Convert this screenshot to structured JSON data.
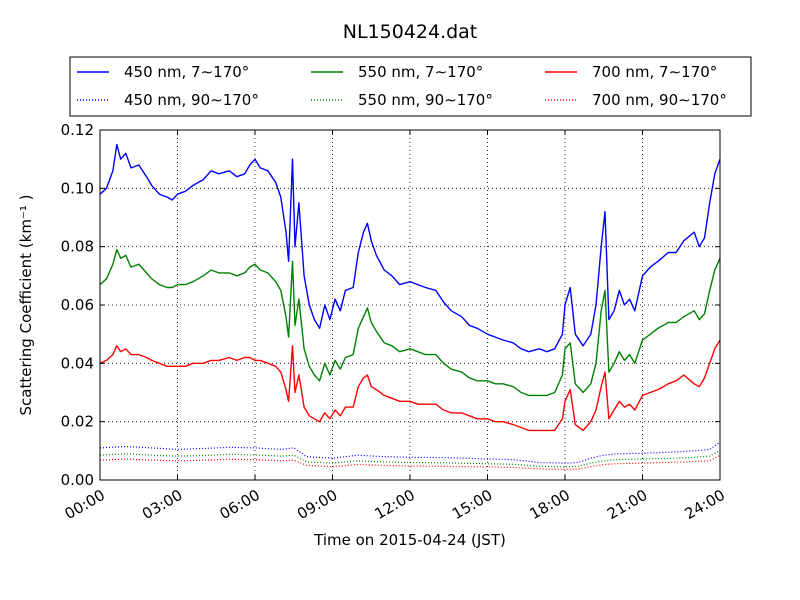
{
  "chart_data": {
    "type": "line",
    "title": "NL150424.dat",
    "xlabel": "Time on 2015-04-24 (JST)",
    "ylabel": "Scattering Coefficient (km⁻¹ )",
    "xlim": [
      0,
      24
    ],
    "ylim": [
      0,
      0.12
    ],
    "xticks": [
      0,
      3,
      6,
      9,
      12,
      15,
      18,
      21,
      24
    ],
    "xtick_labels": [
      "00:00",
      "03:00",
      "06:00",
      "09:00",
      "12:00",
      "15:00",
      "18:00",
      "21:00",
      "24:00"
    ],
    "yticks": [
      0,
      0.02,
      0.04,
      0.06,
      0.08,
      0.1,
      0.12
    ],
    "ytick_labels": [
      "0.00",
      "0.02",
      "0.04",
      "0.06",
      "0.08",
      "0.10",
      "0.12"
    ],
    "grid": true,
    "legend_position": "top, above plot, 3 columns",
    "x_units": "hours",
    "series": [
      {
        "name": "450 nm, 7∼170°",
        "color": "#0000ff",
        "style": "solid",
        "x": [
          0,
          0.25,
          0.5,
          0.65,
          0.8,
          1.0,
          1.2,
          1.5,
          1.8,
          2.0,
          2.3,
          2.6,
          2.8,
          3.0,
          3.3,
          3.6,
          4.0,
          4.3,
          4.6,
          5.0,
          5.3,
          5.6,
          5.8,
          6.0,
          6.2,
          6.5,
          6.8,
          7.0,
          7.2,
          7.3,
          7.45,
          7.55,
          7.7,
          7.9,
          8.1,
          8.3,
          8.5,
          8.7,
          8.9,
          9.1,
          9.3,
          9.5,
          9.8,
          10.0,
          10.2,
          10.35,
          10.5,
          10.7,
          11.0,
          11.3,
          11.6,
          12.0,
          12.3,
          12.6,
          13.0,
          13.3,
          13.6,
          14.0,
          14.3,
          14.6,
          15.0,
          15.3,
          15.6,
          16.0,
          16.3,
          16.6,
          17.0,
          17.3,
          17.6,
          17.9,
          18.0,
          18.2,
          18.4,
          18.7,
          19.0,
          19.2,
          19.4,
          19.55,
          19.7,
          19.9,
          20.1,
          20.3,
          20.5,
          20.7,
          21.0,
          21.3,
          21.6,
          22.0,
          22.3,
          22.6,
          23.0,
          23.2,
          23.4,
          23.6,
          23.8,
          24.0
        ],
        "y": [
          0.098,
          0.1,
          0.106,
          0.115,
          0.11,
          0.112,
          0.107,
          0.108,
          0.104,
          0.101,
          0.098,
          0.097,
          0.096,
          0.098,
          0.099,
          0.101,
          0.103,
          0.106,
          0.105,
          0.106,
          0.104,
          0.105,
          0.108,
          0.11,
          0.107,
          0.106,
          0.102,
          0.097,
          0.085,
          0.075,
          0.11,
          0.08,
          0.095,
          0.07,
          0.06,
          0.055,
          0.052,
          0.06,
          0.055,
          0.062,
          0.058,
          0.065,
          0.066,
          0.078,
          0.085,
          0.088,
          0.082,
          0.077,
          0.072,
          0.07,
          0.067,
          0.068,
          0.067,
          0.066,
          0.065,
          0.061,
          0.058,
          0.056,
          0.053,
          0.052,
          0.05,
          0.049,
          0.048,
          0.047,
          0.045,
          0.044,
          0.045,
          0.044,
          0.045,
          0.05,
          0.06,
          0.066,
          0.05,
          0.046,
          0.05,
          0.06,
          0.08,
          0.092,
          0.055,
          0.058,
          0.065,
          0.06,
          0.062,
          0.058,
          0.07,
          0.073,
          0.075,
          0.078,
          0.078,
          0.082,
          0.085,
          0.08,
          0.083,
          0.095,
          0.105,
          0.11
        ]
      },
      {
        "name": "450 nm, 90∼170°",
        "color": "#0000ff",
        "style": "dotted",
        "x": [
          0,
          1,
          2,
          3,
          4,
          5,
          6,
          7,
          7.5,
          8,
          9,
          10,
          11,
          12,
          13,
          14,
          15,
          16,
          17,
          18,
          18.5,
          19,
          19.5,
          20,
          21,
          22,
          23,
          23.6,
          24
        ],
        "y": [
          0.011,
          0.0115,
          0.011,
          0.0105,
          0.0108,
          0.0112,
          0.011,
          0.0105,
          0.011,
          0.008,
          0.0075,
          0.0085,
          0.008,
          0.0078,
          0.0077,
          0.0075,
          0.0072,
          0.007,
          0.006,
          0.0058,
          0.006,
          0.0075,
          0.0085,
          0.009,
          0.0092,
          0.0095,
          0.01,
          0.0105,
          0.013
        ]
      },
      {
        "name": "550 nm, 7∼170°",
        "color": "#008000",
        "style": "solid",
        "x": [
          0,
          0.25,
          0.5,
          0.65,
          0.8,
          1.0,
          1.2,
          1.5,
          1.8,
          2.0,
          2.3,
          2.6,
          2.8,
          3.0,
          3.3,
          3.6,
          4.0,
          4.3,
          4.6,
          5.0,
          5.3,
          5.6,
          5.8,
          6.0,
          6.2,
          6.5,
          6.8,
          7.0,
          7.2,
          7.3,
          7.45,
          7.55,
          7.7,
          7.9,
          8.1,
          8.3,
          8.5,
          8.7,
          8.9,
          9.1,
          9.3,
          9.5,
          9.8,
          10.0,
          10.2,
          10.35,
          10.5,
          10.7,
          11.0,
          11.3,
          11.6,
          12.0,
          12.3,
          12.6,
          13.0,
          13.3,
          13.6,
          14.0,
          14.3,
          14.6,
          15.0,
          15.3,
          15.6,
          16.0,
          16.3,
          16.6,
          17.0,
          17.3,
          17.6,
          17.9,
          18.0,
          18.2,
          18.4,
          18.7,
          19.0,
          19.2,
          19.4,
          19.55,
          19.7,
          19.9,
          20.1,
          20.3,
          20.5,
          20.7,
          21.0,
          21.3,
          21.6,
          22.0,
          22.3,
          22.6,
          23.0,
          23.2,
          23.4,
          23.6,
          23.8,
          24.0
        ],
        "y": [
          0.067,
          0.069,
          0.074,
          0.079,
          0.076,
          0.077,
          0.073,
          0.074,
          0.071,
          0.069,
          0.067,
          0.066,
          0.066,
          0.067,
          0.067,
          0.068,
          0.07,
          0.072,
          0.071,
          0.071,
          0.07,
          0.071,
          0.073,
          0.074,
          0.072,
          0.071,
          0.068,
          0.065,
          0.056,
          0.049,
          0.075,
          0.053,
          0.062,
          0.045,
          0.039,
          0.036,
          0.034,
          0.04,
          0.036,
          0.041,
          0.038,
          0.042,
          0.043,
          0.052,
          0.056,
          0.059,
          0.054,
          0.051,
          0.047,
          0.046,
          0.044,
          0.045,
          0.044,
          0.043,
          0.043,
          0.04,
          0.038,
          0.037,
          0.035,
          0.034,
          0.034,
          0.033,
          0.033,
          0.032,
          0.03,
          0.029,
          0.029,
          0.029,
          0.03,
          0.036,
          0.045,
          0.047,
          0.033,
          0.03,
          0.033,
          0.04,
          0.058,
          0.065,
          0.037,
          0.04,
          0.044,
          0.041,
          0.043,
          0.04,
          0.048,
          0.05,
          0.052,
          0.054,
          0.054,
          0.056,
          0.058,
          0.055,
          0.057,
          0.065,
          0.072,
          0.076
        ]
      },
      {
        "name": "550 nm, 90∼170°",
        "color": "#008000",
        "style": "dotted",
        "x": [
          0,
          1,
          2,
          3,
          4,
          5,
          6,
          7,
          7.5,
          8,
          9,
          10,
          11,
          12,
          13,
          14,
          15,
          16,
          17,
          18,
          18.5,
          19,
          19.5,
          20,
          21,
          22,
          23,
          23.6,
          24
        ],
        "y": [
          0.0085,
          0.009,
          0.0085,
          0.0082,
          0.0084,
          0.0088,
          0.0086,
          0.0082,
          0.0085,
          0.0062,
          0.0058,
          0.0066,
          0.0062,
          0.006,
          0.0059,
          0.0058,
          0.0056,
          0.0054,
          0.0047,
          0.0045,
          0.0047,
          0.0058,
          0.0066,
          0.007,
          0.0072,
          0.0074,
          0.0078,
          0.0082,
          0.0102
        ]
      },
      {
        "name": "700 nm, 7∼170°",
        "color": "#ff0000",
        "style": "solid",
        "x": [
          0,
          0.25,
          0.5,
          0.65,
          0.8,
          1.0,
          1.2,
          1.5,
          1.8,
          2.0,
          2.3,
          2.6,
          2.8,
          3.0,
          3.3,
          3.6,
          4.0,
          4.3,
          4.6,
          5.0,
          5.3,
          5.6,
          5.8,
          6.0,
          6.2,
          6.5,
          6.8,
          7.0,
          7.2,
          7.3,
          7.45,
          7.55,
          7.7,
          7.9,
          8.1,
          8.3,
          8.5,
          8.7,
          8.9,
          9.1,
          9.3,
          9.5,
          9.8,
          10.0,
          10.2,
          10.35,
          10.5,
          10.7,
          11.0,
          11.3,
          11.6,
          12.0,
          12.3,
          12.6,
          13.0,
          13.3,
          13.6,
          14.0,
          14.3,
          14.6,
          15.0,
          15.3,
          15.6,
          16.0,
          16.3,
          16.6,
          17.0,
          17.3,
          17.6,
          17.9,
          18.0,
          18.2,
          18.4,
          18.7,
          19.0,
          19.2,
          19.4,
          19.55,
          19.7,
          19.9,
          20.1,
          20.3,
          20.5,
          20.7,
          21.0,
          21.3,
          21.6,
          22.0,
          22.3,
          22.6,
          23.0,
          23.2,
          23.4,
          23.6,
          23.8,
          24.0
        ],
        "y": [
          0.04,
          0.041,
          0.043,
          0.046,
          0.044,
          0.045,
          0.043,
          0.043,
          0.042,
          0.041,
          0.04,
          0.039,
          0.039,
          0.039,
          0.039,
          0.04,
          0.04,
          0.041,
          0.041,
          0.042,
          0.041,
          0.042,
          0.042,
          0.041,
          0.041,
          0.04,
          0.039,
          0.037,
          0.031,
          0.027,
          0.046,
          0.03,
          0.036,
          0.025,
          0.022,
          0.021,
          0.02,
          0.023,
          0.021,
          0.024,
          0.022,
          0.025,
          0.025,
          0.032,
          0.035,
          0.036,
          0.032,
          0.031,
          0.029,
          0.028,
          0.027,
          0.027,
          0.026,
          0.026,
          0.026,
          0.024,
          0.023,
          0.023,
          0.022,
          0.021,
          0.021,
          0.02,
          0.02,
          0.019,
          0.018,
          0.017,
          0.017,
          0.017,
          0.017,
          0.021,
          0.027,
          0.031,
          0.019,
          0.017,
          0.02,
          0.024,
          0.032,
          0.037,
          0.021,
          0.024,
          0.027,
          0.025,
          0.026,
          0.024,
          0.029,
          0.03,
          0.031,
          0.033,
          0.034,
          0.036,
          0.033,
          0.032,
          0.035,
          0.04,
          0.045,
          0.048
        ]
      },
      {
        "name": "700 nm, 90∼170°",
        "color": "#ff0000",
        "style": "dotted",
        "x": [
          0,
          1,
          2,
          3,
          4,
          5,
          6,
          7,
          7.5,
          8,
          9,
          10,
          11,
          12,
          13,
          14,
          15,
          16,
          17,
          18,
          18.5,
          19,
          19.5,
          20,
          21,
          22,
          23,
          23.6,
          24
        ],
        "y": [
          0.0068,
          0.0072,
          0.0068,
          0.0066,
          0.0068,
          0.0071,
          0.007,
          0.0066,
          0.0068,
          0.005,
          0.0046,
          0.0053,
          0.005,
          0.0048,
          0.0047,
          0.0046,
          0.0045,
          0.0043,
          0.0038,
          0.0036,
          0.0038,
          0.0046,
          0.0053,
          0.0056,
          0.0058,
          0.006,
          0.0063,
          0.0066,
          0.0085
        ]
      }
    ]
  }
}
